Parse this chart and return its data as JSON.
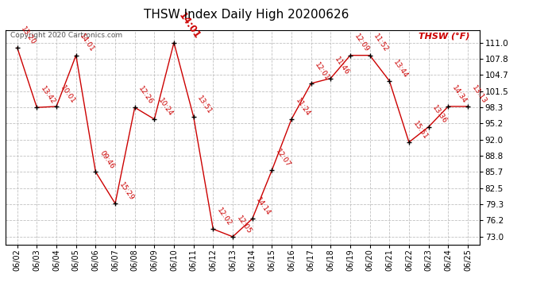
{
  "title": "THSW Index Daily High 20200626",
  "ylabel": "THSW (°F)",
  "copyright": "Copyright 2020 Cartronics.com",
  "dates": [
    "06/02",
    "06/03",
    "06/04",
    "06/05",
    "06/06",
    "06/07",
    "06/08",
    "06/09",
    "06/10",
    "06/11",
    "06/12",
    "06/13",
    "06/14",
    "06/15",
    "06/16",
    "06/17",
    "06/18",
    "06/19",
    "06/20",
    "06/21",
    "06/22",
    "06/23",
    "06/24",
    "06/25"
  ],
  "values": [
    110.0,
    98.3,
    98.5,
    108.5,
    85.7,
    79.5,
    98.3,
    96.0,
    111.0,
    96.5,
    74.5,
    73.0,
    76.5,
    86.0,
    96.0,
    103.0,
    104.0,
    108.5,
    108.5,
    103.5,
    91.5,
    94.5,
    98.5,
    98.5
  ],
  "time_labels": [
    "13:20",
    "13:42",
    "10:01",
    "14:01",
    "09:46",
    "15:29",
    "12:26",
    "10:24",
    "14:01",
    "13:51",
    "12:02",
    "12:05",
    "14:14",
    "12:07",
    "11:24",
    "12:01",
    "11:46",
    "12:09",
    "11:52",
    "13:44",
    "15:51",
    "13:36",
    "14:34",
    "13:13"
  ],
  "line_color": "#cc0000",
  "marker_color": "#000000",
  "label_color": "#cc0000",
  "title_color": "#000000",
  "grid_color": "#bbbbbb",
  "background_color": "#ffffff",
  "yticks": [
    73.0,
    76.2,
    79.3,
    82.5,
    85.7,
    88.8,
    92.0,
    95.2,
    98.3,
    101.5,
    104.7,
    107.8,
    111.0
  ],
  "ylim": [
    71.5,
    113.5
  ],
  "highlight_label_idx": 8,
  "label_fontsize": 6.5,
  "highlight_fontsize": 8.5,
  "title_fontsize": 11,
  "copyright_fontsize": 6.5,
  "ylabel_fontsize": 8
}
